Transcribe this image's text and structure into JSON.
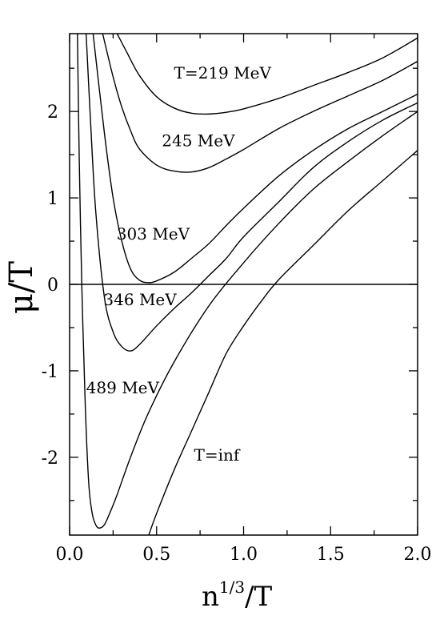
{
  "chart_data": {
    "type": "line",
    "xlabel": {
      "base": "n",
      "sup": "1/3",
      "suffix": "/T"
    },
    "ylabel": "μ/T",
    "xlim": [
      0.0,
      2.0
    ],
    "ylim": [
      -2.9,
      2.9
    ],
    "xticks": [
      "0.0",
      "0.5",
      "1.0",
      "1.5",
      "2.0"
    ],
    "yticks": [
      "-2",
      "-1",
      "0",
      "1",
      "2"
    ],
    "zero_line": true,
    "series": [
      {
        "name": "T=219 MeV",
        "x": [
          0.273,
          0.33,
          0.4,
          0.5,
          0.6,
          0.7,
          0.8,
          0.9,
          1.0,
          1.2,
          1.4,
          1.6,
          1.8,
          2.0
        ],
        "y": [
          2.9,
          2.68,
          2.42,
          2.17,
          2.04,
          1.98,
          1.97,
          1.99,
          2.03,
          2.15,
          2.3,
          2.45,
          2.62,
          2.85
        ]
      },
      {
        "name": "245 MeV",
        "x": [
          0.19,
          0.25,
          0.3,
          0.35,
          0.4,
          0.5,
          0.6,
          0.7,
          0.8,
          0.9,
          1.0,
          1.2,
          1.4,
          1.6,
          1.8,
          2.0
        ],
        "y": [
          2.9,
          2.4,
          2.05,
          1.78,
          1.57,
          1.38,
          1.31,
          1.3,
          1.35,
          1.45,
          1.56,
          1.8,
          2.0,
          2.18,
          2.36,
          2.58
        ]
      },
      {
        "name": "303 MeV",
        "x": [
          0.135,
          0.2,
          0.25,
          0.3,
          0.35,
          0.4,
          0.45,
          0.5,
          0.6,
          0.7,
          0.8,
          0.9,
          1.0,
          1.2,
          1.4,
          1.6,
          1.8,
          2.0
        ],
        "y": [
          2.9,
          1.75,
          1.0,
          0.5,
          0.18,
          0.05,
          0.02,
          0.04,
          0.14,
          0.3,
          0.47,
          0.68,
          0.88,
          1.25,
          1.55,
          1.8,
          2.0,
          2.2
        ]
      },
      {
        "name": "346 MeV",
        "x": [
          0.095,
          0.12,
          0.15,
          0.2,
          0.25,
          0.3,
          0.35,
          0.4,
          0.5,
          0.6,
          0.7,
          0.8,
          0.9,
          1.0,
          1.2,
          1.4,
          1.6,
          1.8,
          2.0
        ],
        "y": [
          2.9,
          1.9,
          0.85,
          -0.15,
          -0.55,
          -0.72,
          -0.77,
          -0.7,
          -0.48,
          -0.28,
          -0.1,
          0.1,
          0.3,
          0.55,
          0.95,
          1.35,
          1.65,
          1.9,
          2.1
        ]
      },
      {
        "name": "489 MeV",
        "x": [
          0.045,
          0.055,
          0.07,
          0.09,
          0.11,
          0.13,
          0.15,
          0.17,
          0.2,
          0.23,
          0.27,
          0.35,
          0.45,
          0.6,
          0.8,
          1.0,
          1.2,
          1.4,
          1.6,
          1.8,
          2.0
        ],
        "y": [
          2.9,
          1.5,
          0.0,
          -1.4,
          -2.3,
          -2.65,
          -2.78,
          -2.82,
          -2.78,
          -2.65,
          -2.45,
          -2.0,
          -1.5,
          -0.9,
          -0.25,
          0.25,
          0.7,
          1.1,
          1.42,
          1.72,
          2.0
        ]
      },
      {
        "name": "T=inf",
        "x": [
          0.455,
          0.5,
          0.6,
          0.7,
          0.8,
          0.9,
          1.0,
          1.1,
          1.2,
          1.4,
          1.6,
          1.8,
          2.0
        ],
        "y": [
          -2.9,
          -2.65,
          -2.15,
          -1.7,
          -1.25,
          -0.8,
          -0.48,
          -0.2,
          0.05,
          0.45,
          0.85,
          1.2,
          1.55
        ]
      }
    ],
    "annotations": [
      {
        "text": "T=219 MeV",
        "x": 0.6,
        "y": 2.38
      },
      {
        "text": "245 MeV",
        "x": 0.53,
        "y": 1.6
      },
      {
        "text": "303 MeV",
        "x": 0.27,
        "y": 0.52
      },
      {
        "text": "346 MeV",
        "x": 0.195,
        "y": -0.24
      },
      {
        "text": "489 MeV",
        "x": 0.095,
        "y": -1.26
      },
      {
        "text": "T=inf",
        "x": 0.715,
        "y": -2.04
      }
    ]
  }
}
